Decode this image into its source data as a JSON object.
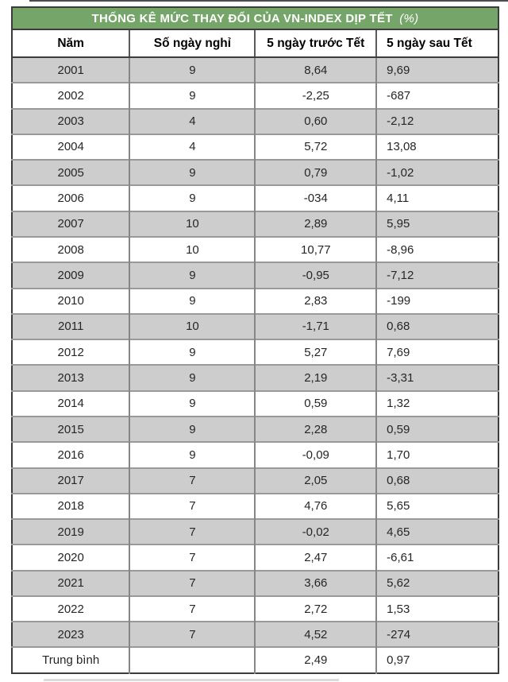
{
  "colors": {
    "title_bar_green": "#76a569",
    "title_text": "#ffffff",
    "row_stripe_gray": "#cdcdcd",
    "row_white": "#ffffff",
    "outer_border": "#3c3c3c",
    "grid_line": "#8f8f8f",
    "cell_text": "#262626"
  },
  "chart_data": {
    "type": "table",
    "title": "THỐNG KÊ MỨC THAY ĐỔI CỦA VN-INDEX DỊP TẾT (%)",
    "title_main": "THỐNG KÊ MỨC THAY ĐỔI CỦA VN-INDEX DỊP TẾT",
    "title_suffix": "(%)",
    "columns": [
      "Năm",
      "Số ngày nghỉ",
      "5 ngày trước Tết",
      "5 ngày sau Tết"
    ],
    "rows": [
      [
        "2001",
        "9",
        "8,64",
        "9,69"
      ],
      [
        "2002",
        "9",
        "-2,25",
        "-687"
      ],
      [
        "2003",
        "4",
        "0,60",
        "-2,12"
      ],
      [
        "2004",
        "4",
        "5,72",
        "13,08"
      ],
      [
        "2005",
        "9",
        "0,79",
        "-1,02"
      ],
      [
        "2006",
        "9",
        "-034",
        "4,11"
      ],
      [
        "2007",
        "10",
        "2,89",
        "5,95"
      ],
      [
        "2008",
        "10",
        "10,77",
        "-8,96"
      ],
      [
        "2009",
        "9",
        "-0,95",
        "-7,12"
      ],
      [
        "2010",
        "9",
        "2,83",
        "-199"
      ],
      [
        "2011",
        "10",
        "-1,71",
        "0,68"
      ],
      [
        "2012",
        "9",
        "5,27",
        "7,69"
      ],
      [
        "2013",
        "9",
        "2,19",
        "-3,31"
      ],
      [
        "2014",
        "9",
        "0,59",
        "1,32"
      ],
      [
        "2015",
        "9",
        "2,28",
        "0,59"
      ],
      [
        "2016",
        "9",
        "-0,09",
        "1,70"
      ],
      [
        "2017",
        "7",
        "2,05",
        "0,68"
      ],
      [
        "2018",
        "7",
        "4,76",
        "5,65"
      ],
      [
        "2019",
        "7",
        "-0,02",
        "4,65"
      ],
      [
        "2020",
        "7",
        "2,47",
        "-6,61"
      ],
      [
        "2021",
        "7",
        "3,66",
        "5,62"
      ],
      [
        "2022",
        "7",
        "2,72",
        "1,53"
      ],
      [
        "2023",
        "7",
        "4,52",
        "-274"
      ],
      [
        "Trung bình",
        "",
        "2,49",
        "0,97"
      ]
    ],
    "layout_hints": {
      "striped_rows": true,
      "first_data_row_shaded": true,
      "last_column_alignment": "left",
      "other_columns_alignment": "center"
    }
  },
  "cell_names": [
    "cell-year",
    "cell-holiday-days",
    "cell-before-tet",
    "cell-after-tet"
  ]
}
